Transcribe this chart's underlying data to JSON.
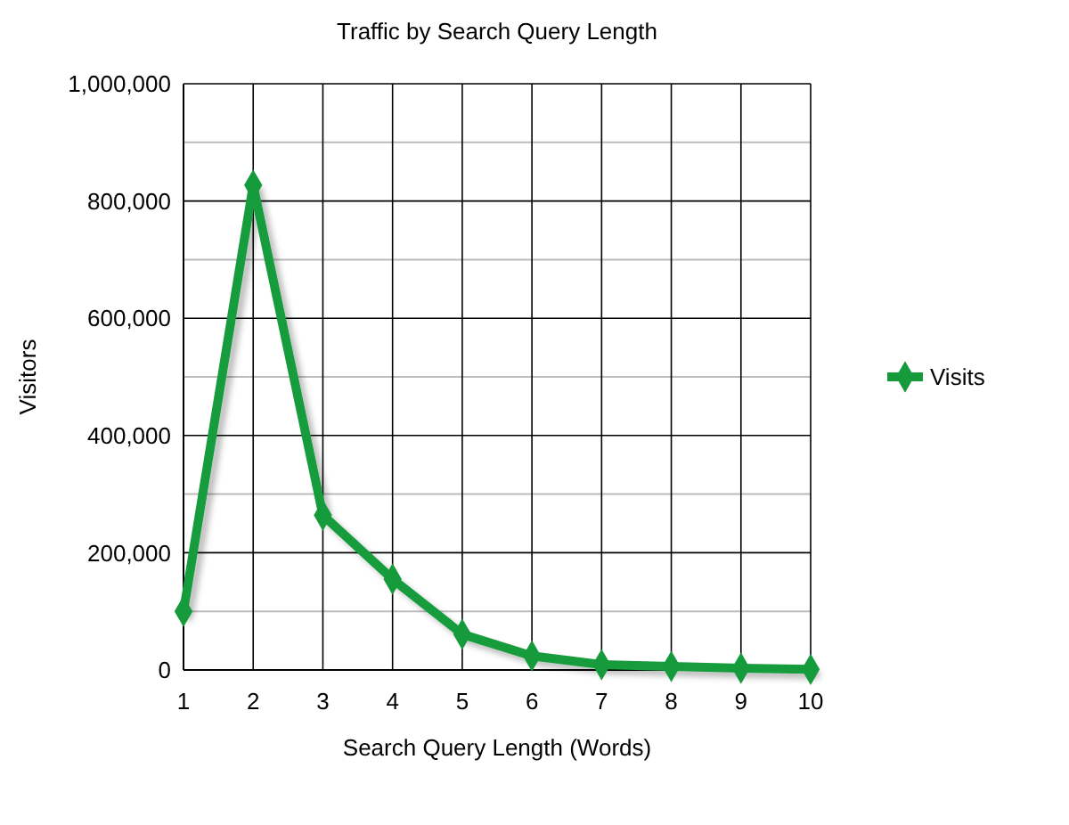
{
  "chart_data": {
    "type": "line",
    "title": "Traffic by Search Query Length",
    "xlabel": "Search Query Length (Words)",
    "ylabel": "Visitors",
    "x": [
      1,
      2,
      3,
      4,
      5,
      6,
      7,
      8,
      9,
      10
    ],
    "series": [
      {
        "name": "Visits",
        "color": "#169b3c",
        "values": [
          100000,
          827000,
          264000,
          155000,
          61000,
          24000,
          9000,
          6000,
          3000,
          1000
        ]
      }
    ],
    "xlim": [
      1,
      10
    ],
    "xticks": [
      1,
      2,
      3,
      4,
      5,
      6,
      7,
      8,
      9,
      10
    ],
    "ylim": [
      0,
      1000000
    ],
    "yticks": [
      {
        "value": 0,
        "label": "0"
      },
      {
        "value": 200000,
        "label": "200,000"
      },
      {
        "value": 400000,
        "label": "400,000"
      },
      {
        "value": 600000,
        "label": "600,000"
      },
      {
        "value": 800000,
        "label": "800,000"
      },
      {
        "value": 1000000,
        "label": "1,000,000"
      }
    ],
    "grid": true,
    "legend": "right",
    "marker": "diamond",
    "line_style": "solid"
  }
}
